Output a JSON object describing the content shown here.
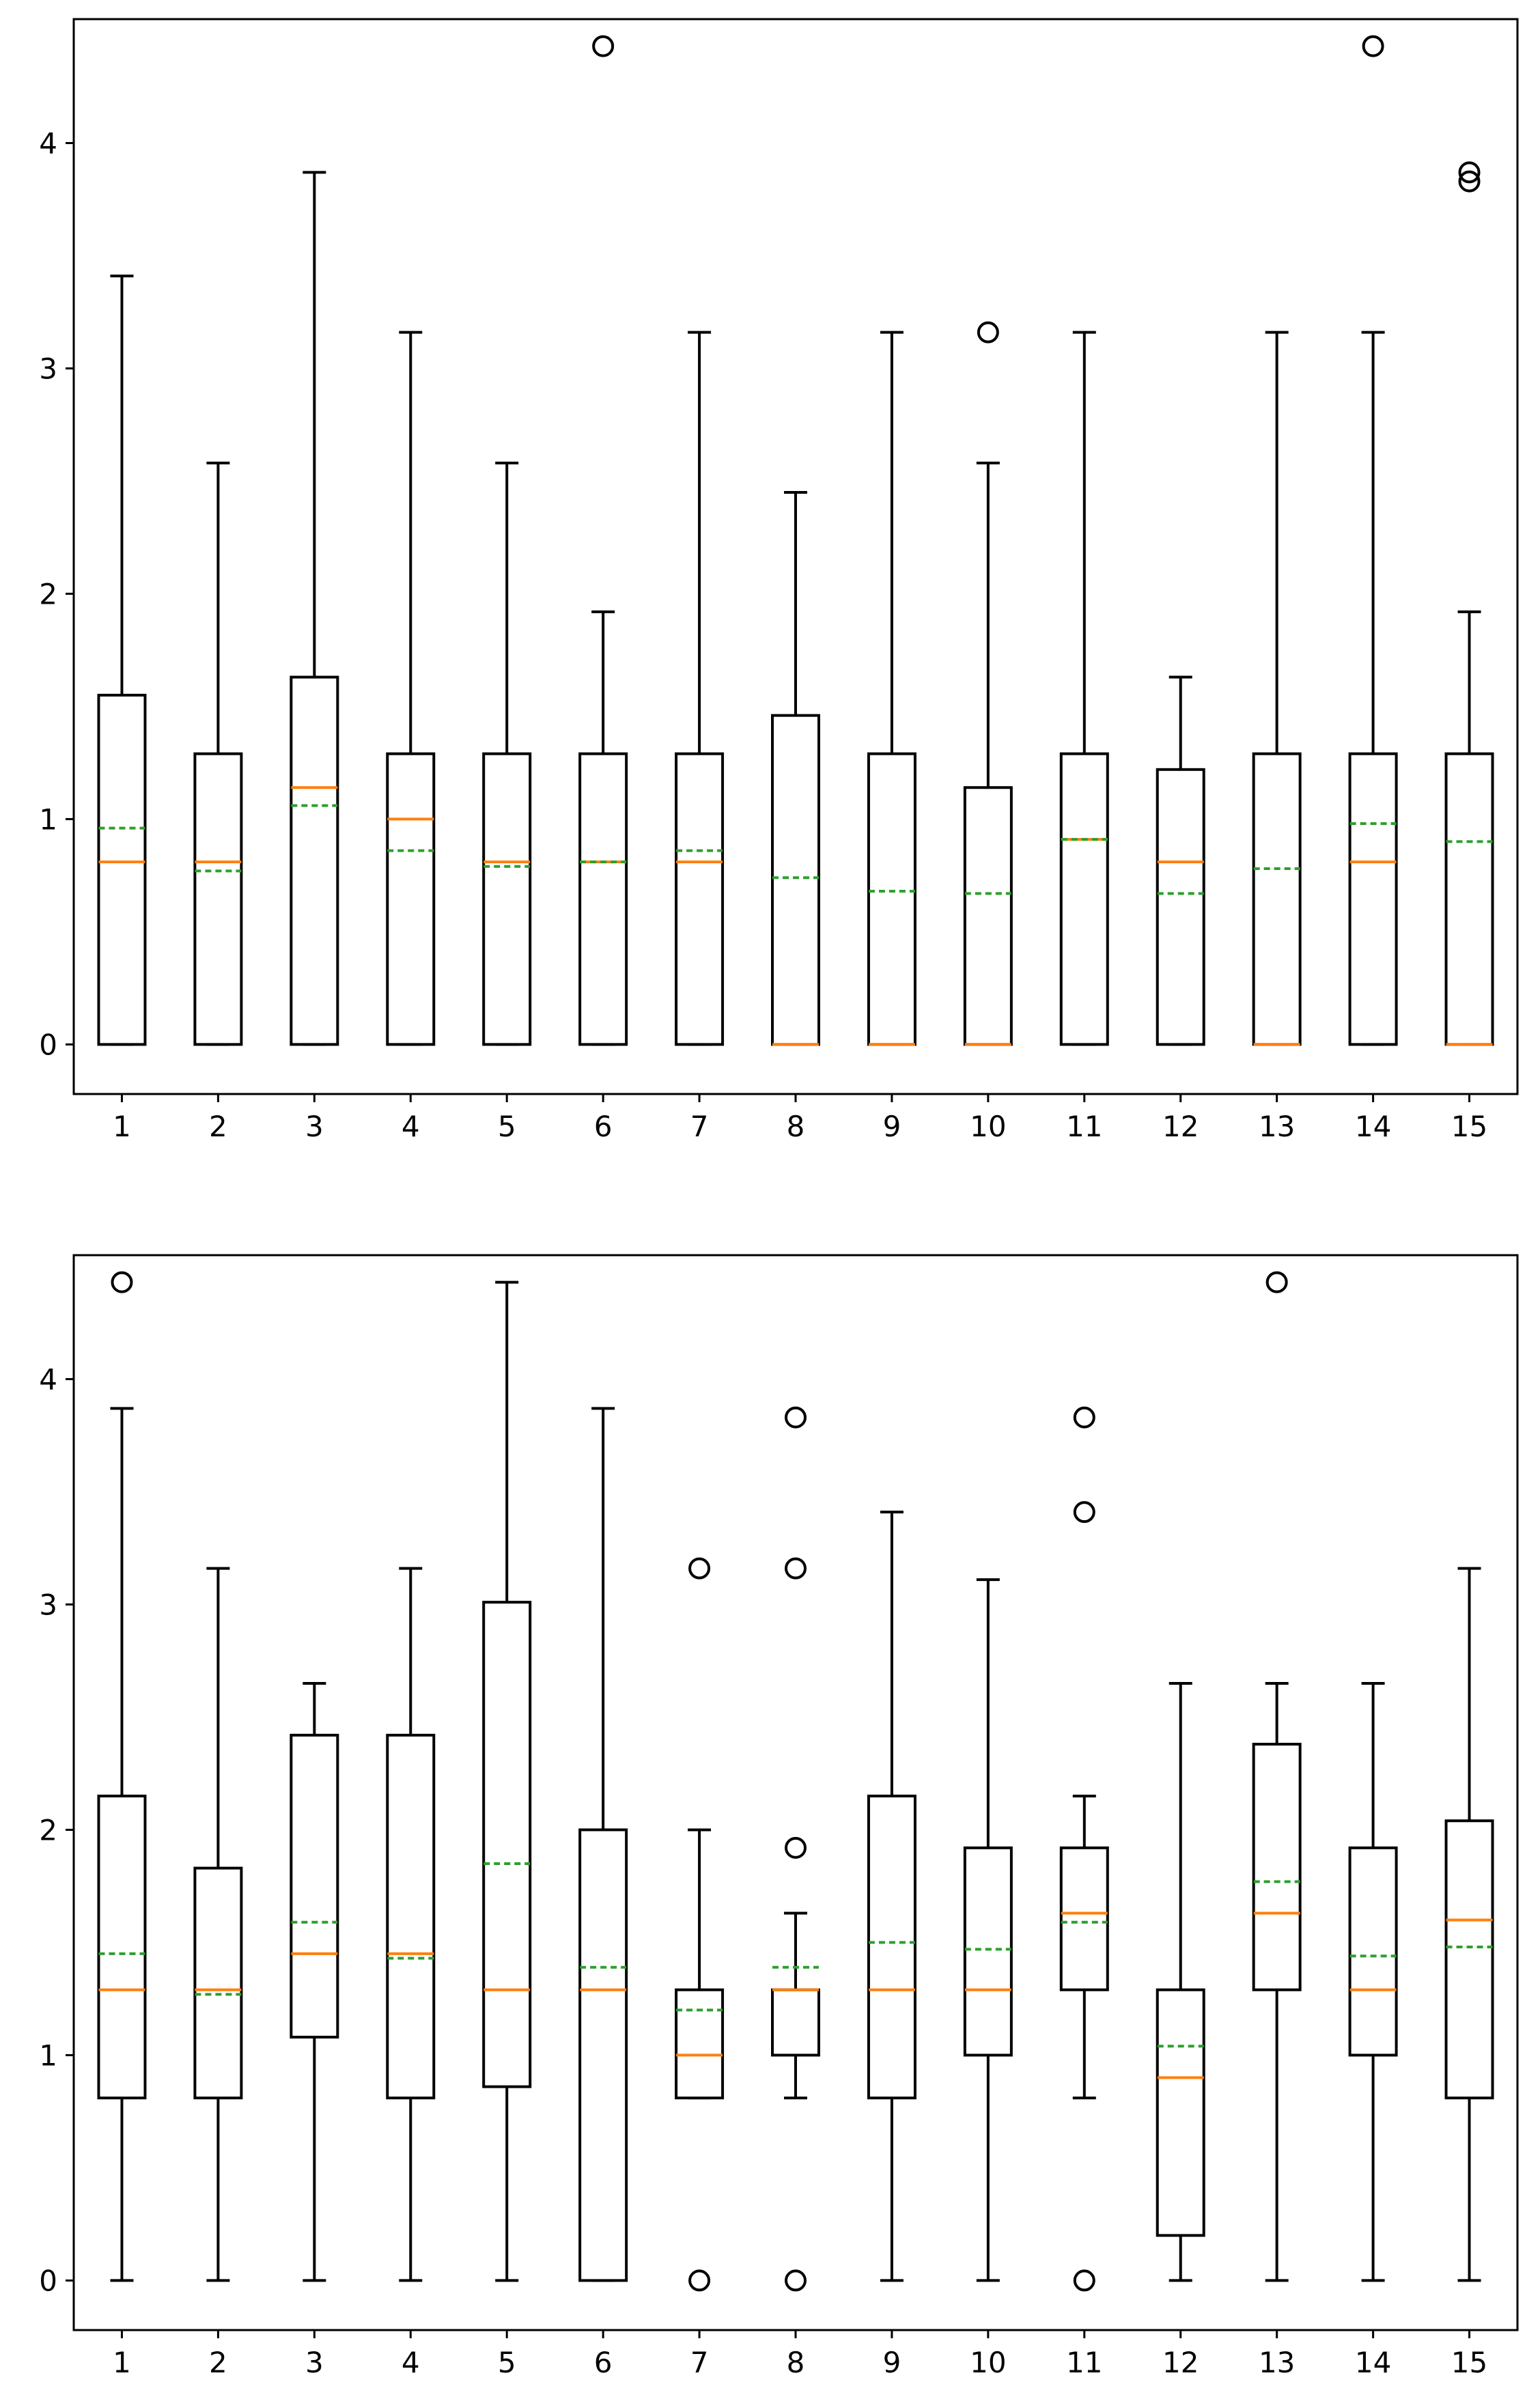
{
  "chart_data": [
    {
      "type": "boxplot",
      "title": "",
      "xlabel": "",
      "ylabel": "",
      "categories": [
        "1",
        "2",
        "3",
        "4",
        "5",
        "6",
        "7",
        "8",
        "9",
        "10",
        "11",
        "12",
        "13",
        "14",
        "15"
      ],
      "ylim": [
        -0.22,
        4.55
      ],
      "yticks": [
        0,
        1,
        2,
        3,
        4
      ],
      "grid": false,
      "median_color": "#ff7f0e",
      "mean_color": "#2ca02c",
      "box_color": "#000000",
      "boxes": [
        {
          "label": "1",
          "whislo": 0,
          "q1": 0,
          "med": 0.81,
          "q3": 1.55,
          "whishi": 3.41,
          "mean": 0.96,
          "fliers": []
        },
        {
          "label": "2",
          "whislo": 0,
          "q1": 0,
          "med": 0.81,
          "q3": 1.29,
          "whishi": 2.58,
          "mean": 0.77,
          "fliers": []
        },
        {
          "label": "3",
          "whislo": 0,
          "q1": 0,
          "med": 1.14,
          "q3": 1.63,
          "whishi": 3.87,
          "mean": 1.06,
          "fliers": []
        },
        {
          "label": "4",
          "whislo": 0,
          "q1": 0,
          "med": 1.0,
          "q3": 1.29,
          "whishi": 3.16,
          "mean": 0.86,
          "fliers": []
        },
        {
          "label": "5",
          "whislo": 0,
          "q1": 0,
          "med": 0.81,
          "q3": 1.29,
          "whishi": 2.58,
          "mean": 0.79,
          "fliers": []
        },
        {
          "label": "6",
          "whislo": 0,
          "q1": 0,
          "med": 0.81,
          "q3": 1.29,
          "whishi": 1.92,
          "mean": 0.81,
          "fliers": [
            4.43
          ]
        },
        {
          "label": "7",
          "whislo": 0,
          "q1": 0,
          "med": 0.81,
          "q3": 1.29,
          "whishi": 3.16,
          "mean": 0.86,
          "fliers": []
        },
        {
          "label": "8",
          "whislo": 0,
          "q1": 0,
          "med": 0,
          "q3": 1.46,
          "whishi": 2.45,
          "mean": 0.74,
          "fliers": []
        },
        {
          "label": "9",
          "whislo": 0,
          "q1": 0,
          "med": 0,
          "q3": 1.29,
          "whishi": 3.16,
          "mean": 0.68,
          "fliers": []
        },
        {
          "label": "10",
          "whislo": 0,
          "q1": 0,
          "med": 0,
          "q3": 1.14,
          "whishi": 2.58,
          "mean": 0.67,
          "fliers": [
            3.16
          ]
        },
        {
          "label": "11",
          "whislo": 0,
          "q1": 0,
          "med": 0.91,
          "q3": 1.29,
          "whishi": 3.16,
          "mean": 0.91,
          "fliers": []
        },
        {
          "label": "12",
          "whislo": 0,
          "q1": 0,
          "med": 0.81,
          "q3": 1.22,
          "whishi": 1.63,
          "mean": 0.67,
          "fliers": []
        },
        {
          "label": "13",
          "whislo": 0,
          "q1": 0,
          "med": 0,
          "q3": 1.29,
          "whishi": 3.16,
          "mean": 0.78,
          "fliers": []
        },
        {
          "label": "14",
          "whislo": 0,
          "q1": 0,
          "med": 0.81,
          "q3": 1.29,
          "whishi": 3.16,
          "mean": 0.98,
          "fliers": [
            4.43
          ]
        },
        {
          "label": "15",
          "whislo": 0,
          "q1": 0,
          "med": 0,
          "q3": 1.29,
          "whishi": 1.92,
          "mean": 0.9,
          "fliers": [
            3.83,
            3.87
          ]
        }
      ]
    },
    {
      "type": "boxplot",
      "title": "",
      "xlabel": "",
      "ylabel": "",
      "categories": [
        "1",
        "2",
        "3",
        "4",
        "5",
        "6",
        "7",
        "8",
        "9",
        "10",
        "11",
        "12",
        "13",
        "14",
        "15"
      ],
      "ylim": [
        -0.22,
        4.55
      ],
      "yticks": [
        0,
        1,
        2,
        3,
        4
      ],
      "grid": false,
      "median_color": "#ff7f0e",
      "mean_color": "#2ca02c",
      "box_color": "#000000",
      "boxes": [
        {
          "label": "1",
          "whislo": 0,
          "q1": 0.81,
          "med": 1.29,
          "q3": 2.15,
          "whishi": 3.87,
          "mean": 1.45,
          "fliers": [
            4.43
          ]
        },
        {
          "label": "2",
          "whislo": 0,
          "q1": 0.81,
          "med": 1.29,
          "q3": 1.83,
          "whishi": 3.16,
          "mean": 1.27,
          "fliers": []
        },
        {
          "label": "3",
          "whislo": 0,
          "q1": 1.08,
          "med": 1.45,
          "q3": 2.42,
          "whishi": 2.65,
          "mean": 1.59,
          "fliers": []
        },
        {
          "label": "4",
          "whislo": 0,
          "q1": 0.81,
          "med": 1.45,
          "q3": 2.42,
          "whishi": 3.16,
          "mean": 1.43,
          "fliers": []
        },
        {
          "label": "5",
          "whislo": 0,
          "q1": 0.86,
          "med": 1.29,
          "q3": 3.01,
          "whishi": 4.43,
          "mean": 1.85,
          "fliers": []
        },
        {
          "label": "6",
          "whislo": 0,
          "q1": 0,
          "med": 1.29,
          "q3": 2.0,
          "whishi": 3.87,
          "mean": 1.39,
          "fliers": []
        },
        {
          "label": "7",
          "whislo": 0.81,
          "q1": 0.81,
          "med": 1.0,
          "q3": 1.29,
          "whishi": 2.0,
          "mean": 1.2,
          "fliers": [
            0,
            3.16
          ]
        },
        {
          "label": "8",
          "whislo": 0.81,
          "q1": 1.0,
          "med": 1.29,
          "q3": 1.29,
          "whishi": 1.63,
          "mean": 1.39,
          "fliers": [
            0,
            1.92,
            3.16,
            3.83
          ]
        },
        {
          "label": "9",
          "whislo": 0,
          "q1": 0.81,
          "med": 1.29,
          "q3": 2.15,
          "whishi": 3.41,
          "mean": 1.5,
          "fliers": []
        },
        {
          "label": "10",
          "whislo": 0,
          "q1": 1.0,
          "med": 1.29,
          "q3": 1.92,
          "whishi": 3.11,
          "mean": 1.47,
          "fliers": []
        },
        {
          "label": "11",
          "whislo": 0.81,
          "q1": 1.29,
          "med": 1.63,
          "q3": 1.92,
          "whishi": 2.15,
          "mean": 1.59,
          "fliers": [
            0,
            3.41,
            3.83
          ]
        },
        {
          "label": "12",
          "whislo": 0,
          "q1": 0.2,
          "med": 0.9,
          "q3": 1.29,
          "whishi": 2.65,
          "mean": 1.04,
          "fliers": []
        },
        {
          "label": "13",
          "whislo": 0,
          "q1": 1.29,
          "med": 1.63,
          "q3": 2.38,
          "whishi": 2.65,
          "mean": 1.77,
          "fliers": [
            4.43
          ]
        },
        {
          "label": "14",
          "whislo": 0,
          "q1": 1.0,
          "med": 1.29,
          "q3": 1.92,
          "whishi": 2.65,
          "mean": 1.44,
          "fliers": []
        },
        {
          "label": "15",
          "whislo": 0,
          "q1": 0.81,
          "med": 1.6,
          "q3": 2.04,
          "whishi": 3.16,
          "mean": 1.48,
          "fliers": []
        }
      ]
    }
  ]
}
